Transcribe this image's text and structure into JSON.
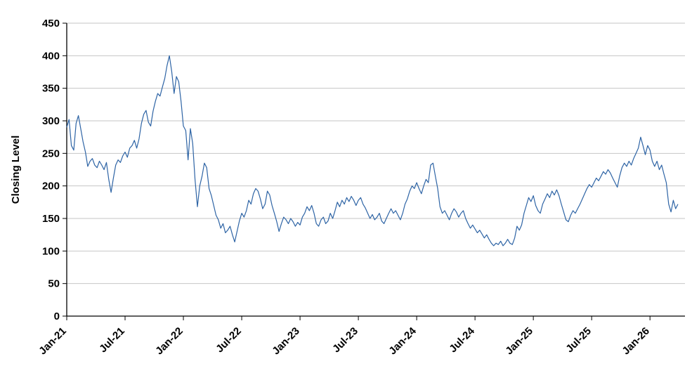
{
  "page": {
    "background": "#ffffff"
  },
  "chart_data": {
    "type": "line",
    "title": "",
    "xlabel": "",
    "ylabel": "Closing Level",
    "grid": true,
    "legend": "none",
    "line_color": "#2E64A5",
    "grid_color": "#c6c6c6",
    "axis_color": "#000000",
    "ylim": [
      0,
      450
    ],
    "y_tick_step": 50,
    "y_tick_labels": [
      "0",
      "50",
      "100",
      "150",
      "200",
      "250",
      "300",
      "350",
      "400",
      "450"
    ],
    "xlim": [
      2021.0,
      2026.3
    ],
    "x_ticks": [
      {
        "pos": 2021.0,
        "label": "Jan-21"
      },
      {
        "pos": 2021.5,
        "label": "Jul-21"
      },
      {
        "pos": 2022.0,
        "label": "Jan-22"
      },
      {
        "pos": 2022.5,
        "label": "Jul-22"
      },
      {
        "pos": 2023.0,
        "label": "Jan-23"
      },
      {
        "pos": 2023.5,
        "label": "Jul-23"
      },
      {
        "pos": 2024.0,
        "label": "Jan-24"
      },
      {
        "pos": 2024.5,
        "label": "Jul-24"
      },
      {
        "pos": 2025.0,
        "label": "Jan-25"
      },
      {
        "pos": 2025.5,
        "label": "Jul-25"
      },
      {
        "pos": 2026.0,
        "label": "Jan-26"
      }
    ],
    "series": [
      {
        "name": "Closing Level",
        "x_start": 2021.0,
        "x_step": 0.02,
        "values": [
          290,
          302,
          262,
          255,
          296,
          308,
          288,
          268,
          252,
          230,
          238,
          242,
          232,
          228,
          238,
          232,
          225,
          236,
          210,
          190,
          212,
          232,
          240,
          236,
          246,
          252,
          244,
          258,
          262,
          270,
          258,
          272,
          296,
          310,
          316,
          298,
          292,
          315,
          330,
          342,
          338,
          352,
          365,
          385,
          400,
          376,
          342,
          368,
          360,
          330,
          292,
          285,
          240,
          288,
          265,
          210,
          168,
          200,
          215,
          235,
          228,
          196,
          185,
          170,
          155,
          148,
          135,
          142,
          128,
          132,
          138,
          125,
          114,
          130,
          146,
          158,
          152,
          162,
          178,
          172,
          188,
          196,
          192,
          180,
          165,
          172,
          192,
          186,
          170,
          158,
          145,
          130,
          142,
          152,
          148,
          142,
          150,
          145,
          138,
          144,
          140,
          152,
          158,
          168,
          162,
          170,
          158,
          142,
          138,
          148,
          152,
          142,
          146,
          158,
          150,
          162,
          175,
          168,
          178,
          172,
          182,
          176,
          184,
          178,
          170,
          178,
          182,
          172,
          166,
          158,
          150,
          156,
          148,
          152,
          158,
          146,
          142,
          150,
          158,
          165,
          158,
          162,
          155,
          148,
          158,
          172,
          180,
          192,
          200,
          196,
          205,
          196,
          188,
          200,
          210,
          205,
          232,
          235,
          215,
          196,
          168,
          158,
          162,
          155,
          148,
          158,
          165,
          160,
          152,
          158,
          162,
          150,
          142,
          135,
          140,
          134,
          128,
          132,
          126,
          120,
          125,
          118,
          112,
          108,
          112,
          110,
          115,
          108,
          112,
          118,
          112,
          110,
          120,
          138,
          132,
          140,
          158,
          170,
          182,
          176,
          185,
          170,
          162,
          158,
          172,
          180,
          188,
          182,
          192,
          186,
          194,
          185,
          172,
          160,
          148,
          145,
          155,
          162,
          158,
          165,
          172,
          180,
          188,
          196,
          202,
          198,
          205,
          212,
          208,
          215,
          222,
          218,
          225,
          220,
          212,
          205,
          198,
          215,
          228,
          235,
          230,
          238,
          232,
          242,
          250,
          258,
          275,
          262,
          248,
          262,
          255,
          238,
          230,
          238,
          225,
          232,
          218,
          205,
          172,
          160,
          178,
          165,
          172
        ]
      }
    ]
  }
}
